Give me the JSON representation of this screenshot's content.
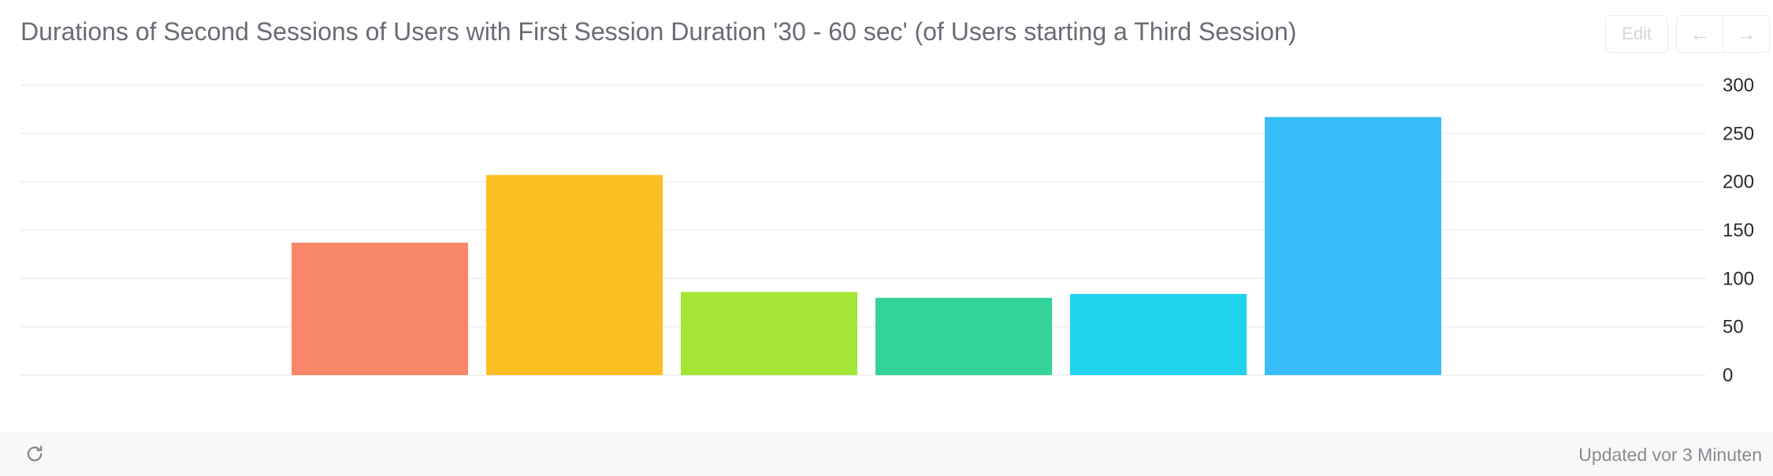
{
  "header": {
    "title": "Durations of Second Sessions of Users with First Session Duration '30 - 60 sec' (of Users starting a Third Session)",
    "edit_label": "Edit",
    "prev_label": "←",
    "next_label": "→"
  },
  "footer": {
    "refresh_icon": "refresh-icon",
    "updated_text": "Updated vor 3 Minuten"
  },
  "chart_data": {
    "type": "bar",
    "title": "Durations of Second Sessions of Users with First Session Duration '30 - 60 sec' (of Users starting a Third Session)",
    "categories": [
      "",
      "",
      "",
      "",
      "",
      "",
      "",
      ""
    ],
    "values": [
      0,
      137,
      207,
      86,
      80,
      84,
      267,
      0
    ],
    "colors": [
      "#f8876a",
      "#f8876a",
      "#fbbf24",
      "#a3e635",
      "#34d399",
      "#22d3ee",
      "#38bdf8",
      "#38bdf8"
    ],
    "ylim": [
      0,
      300
    ],
    "yticks": [
      "0",
      "50",
      "100",
      "150",
      "200",
      "250",
      "300"
    ],
    "yaxis_position": "right",
    "grid": true,
    "xlabel": "",
    "ylabel": ""
  }
}
